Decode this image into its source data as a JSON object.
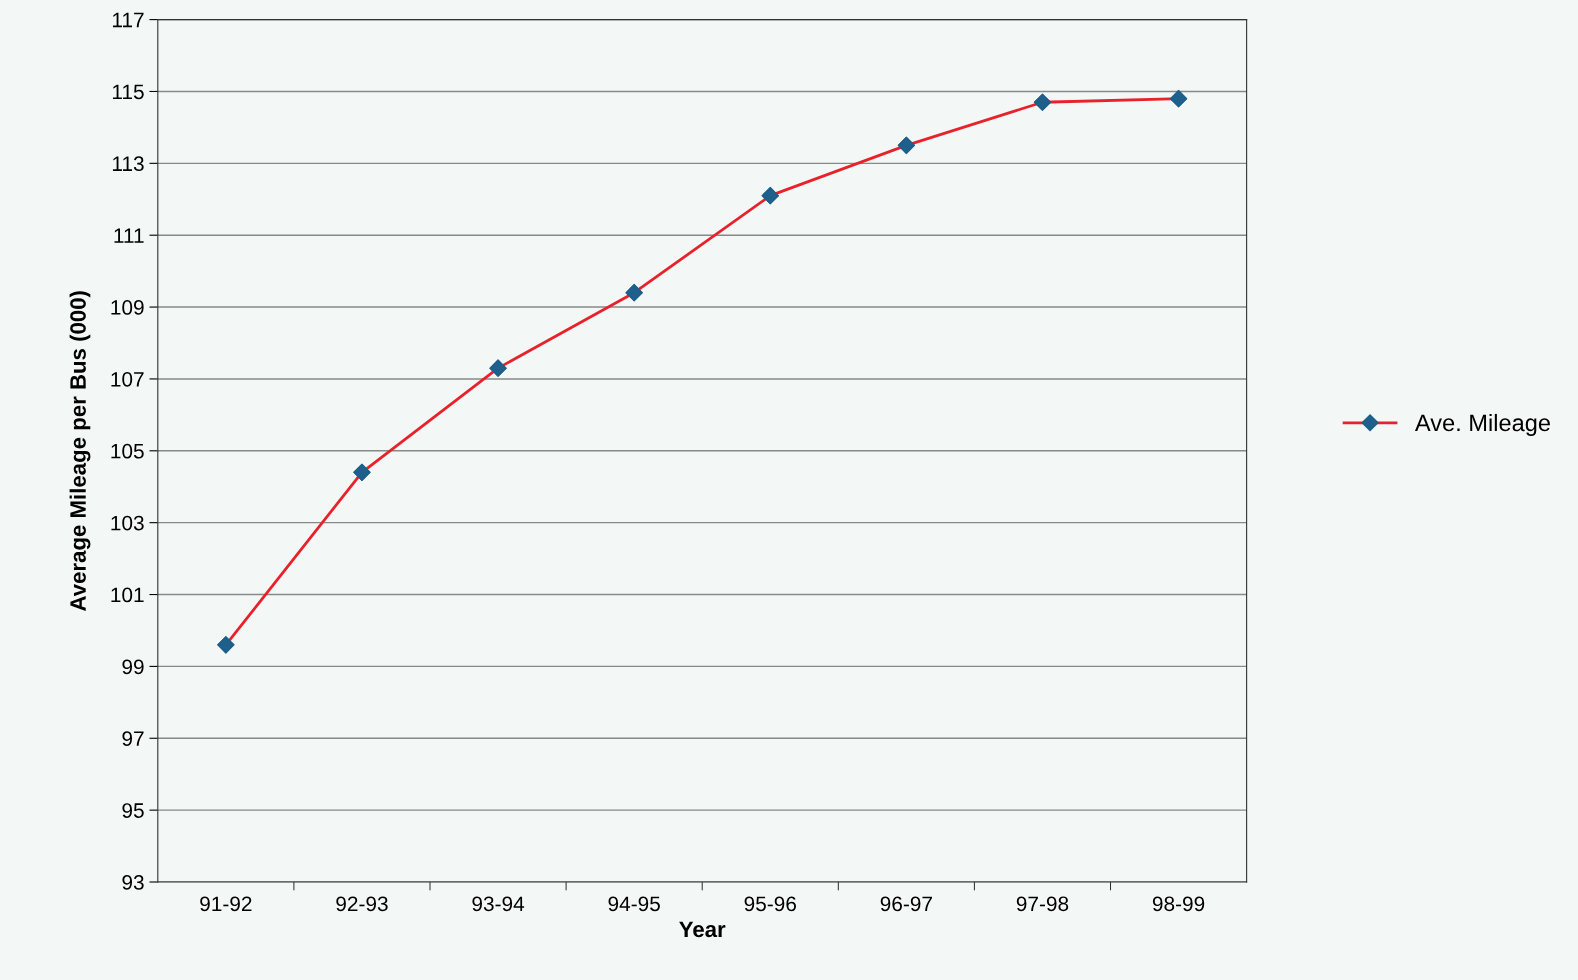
{
  "chart_data": {
    "type": "line",
    "xlabel": "Year",
    "ylabel": "Average Mileage per Bus (000)",
    "categories": [
      "91-92",
      "92-93",
      "93-94",
      "94-95",
      "95-96",
      "96-97",
      "97-98",
      "98-99"
    ],
    "series": [
      {
        "name": "Ave. Mileage",
        "color": "#e8222a",
        "colors": [
          "#1f5f8b",
          "#1f5f8b",
          "#1f5f8b",
          "#1f5f8b",
          "#1f5f8b",
          "#1f5f8b",
          "#1f5f8b",
          "#1f5f8b"
        ],
        "values": [
          99.6,
          104.4,
          107.3,
          109.4,
          112.1,
          113.5,
          114.7,
          114.8
        ]
      }
    ],
    "ylim": [
      93,
      117
    ],
    "yticks": [
      93,
      95,
      97,
      99,
      101,
      103,
      105,
      107,
      109,
      111,
      113,
      115,
      117
    ],
    "grid": "y",
    "legend": "right",
    "marker": "diamond",
    "line_style": "solid"
  }
}
